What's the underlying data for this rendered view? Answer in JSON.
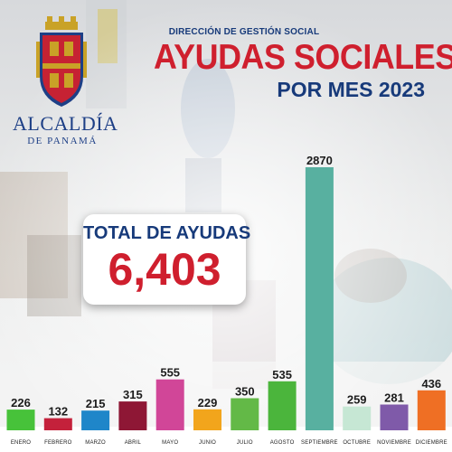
{
  "brand": {
    "name": "ALCALDÍA",
    "sub": "DE PANAMÁ"
  },
  "header": {
    "pre_title": "DIRECCIÓN DE GESTIÓN SOCIAL",
    "title": "AYUDAS SOCIALES",
    "subtitle": "POR MES 2023"
  },
  "total": {
    "label": "TOTAL DE AYUDAS",
    "value": "6,403"
  },
  "colors": {
    "title_red": "#cf1f2e",
    "navy": "#173a7a"
  },
  "chart_data": {
    "type": "bar",
    "title": "AYUDAS SOCIALES",
    "subtitle": "POR MES 2023",
    "categories": [
      "ENERO",
      "FEBRERO",
      "MARZO",
      "ABRIL",
      "MAYO",
      "JUNIO",
      "JULIO",
      "AGOSTO",
      "SEPTIEMBRE",
      "OCTUBRE",
      "NOVIEMBRE",
      "DICIEMBRE"
    ],
    "values": [
      226,
      132,
      215,
      315,
      555,
      229,
      350,
      535,
      2870,
      259,
      281,
      436
    ],
    "value_labels": [
      "226",
      "132",
      "215",
      "315",
      "555",
      "229",
      "350",
      "535",
      "2870",
      "259",
      "281",
      "436"
    ],
    "colors": [
      "#47c23a",
      "#c4213b",
      "#1f86c9",
      "#8e1735",
      "#d14698",
      "#f2a51c",
      "#63b947",
      "#4bb53c",
      "#58b0a0",
      "#c6e7d4",
      "#7f5aa9",
      "#ef6f24"
    ],
    "ylim": [
      0,
      2870
    ],
    "xlabel": "",
    "ylabel": "",
    "grid": false,
    "legend": "none",
    "data_labels": true
  }
}
